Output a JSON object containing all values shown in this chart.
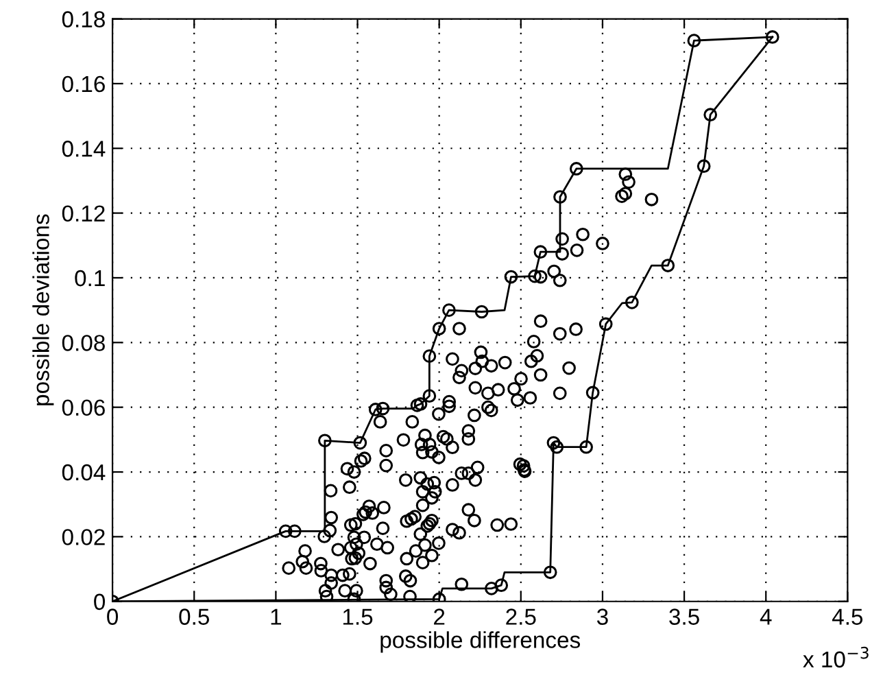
{
  "chart_data": {
    "type": "scatter",
    "xlabel": "possible differences",
    "ylabel": "possible deviations",
    "annotations": [
      "x 10$^{−3}$"
    ],
    "xlim": [
      0,
      4.5
    ],
    "xticks": [
      0,
      0.5,
      1,
      1.5,
      2,
      2.5,
      3,
      3.5,
      4,
      4.5
    ],
    "ylim": [
      0,
      0.18
    ],
    "yticks": [
      0,
      0.02,
      0.04,
      0.06,
      0.08,
      0.1,
      0.12,
      0.14,
      0.16,
      0.18
    ],
    "grid": true,
    "marker": "circle",
    "series": [
      {
        "color": "#000000",
        "x": [
          0,
          1.06,
          1.115,
          1.3,
          1.516,
          1.61,
          1.655,
          1.865,
          1.886,
          1.94,
          1.94,
          2.0,
          2.06,
          2.26,
          2.44,
          2.585,
          2.62,
          2.74,
          2.84,
          3.56,
          4.04,
          2.0,
          2.32,
          2.38,
          2.68,
          2.7,
          2.72,
          2.9,
          2.94,
          3.02,
          3.18,
          3.4,
          3.62,
          3.66,
          1.079,
          1.179,
          1.163,
          1.185,
          1.275,
          1.277,
          1.297,
          1.331,
          1.339,
          1.336,
          1.303,
          1.311,
          1.339,
          1.339,
          1.381,
          1.409,
          1.423,
          1.451,
          1.465,
          1.459,
          1.459,
          1.487,
          1.479,
          1.493,
          1.507,
          1.487,
          1.479,
          1.493,
          1.541,
          1.535,
          1.549,
          1.571,
          1.591,
          1.577,
          1.619,
          1.655,
          1.661,
          1.683,
          1.675,
          1.675,
          1.703,
          1.451,
          1.437,
          1.479,
          1.521,
          1.543,
          1.675,
          1.675,
          1.639,
          1.781,
          1.795,
          1.801,
          1.829,
          1.851,
          1.801,
          1.795,
          1.823,
          1.821,
          1.857,
          1.885,
          1.899,
          1.885,
          1.927,
          1.899,
          1.969,
          1.955,
          1.975,
          1.899,
          1.941,
          1.955,
          1.927,
          1.913,
          1.955,
          1.997,
          1.913,
          1.891,
          1.941,
          1.899,
          1.955,
          1.997,
          1.835,
          2.025,
          2.047,
          2.081,
          1.997,
          2.061,
          2.061,
          2.081,
          2.123,
          2.137,
          2.123,
          2.221,
          2.081,
          2.081,
          2.123,
          2.137,
          2.179,
          2.215,
          2.137,
          2.179,
          2.221,
          2.179,
          2.179,
          2.215,
          2.221,
          2.255,
          2.263,
          2.319,
          2.403,
          2.299,
          2.361,
          2.459,
          2.479,
          2.501,
          2.557,
          2.299,
          2.319,
          2.235,
          2.495,
          2.521,
          2.355,
          2.439,
          2.579,
          2.599,
          2.563,
          2.621,
          2.621,
          2.739,
          2.837,
          2.795,
          2.739,
          2.703,
          2.739,
          2.621,
          2.753,
          2.753,
          2.843,
          2.879,
          3.0,
          3.14,
          3.16,
          3.14,
          3.118,
          3.3,
          2.516,
          2.524
        ],
        "values": [
          0,
          0.0217,
          0.0217,
          0.0497,
          0.049,
          0.0593,
          0.0596,
          0.0606,
          0.061,
          0.0635,
          0.0758,
          0.0843,
          0.09,
          0.0895,
          0.1003,
          0.1005,
          0.108,
          0.125,
          0.1337,
          0.1733,
          0.1744,
          0.0007,
          0.004,
          0.005,
          0.009,
          0.049,
          0.0477,
          0.0477,
          0.0645,
          0.0857,
          0.0924,
          0.1038,
          0.1345,
          0.1504,
          0.0103,
          0.0156,
          0.0123,
          0.0103,
          0.0117,
          0.0095,
          0.0201,
          0.0219,
          0.0259,
          0.0342,
          0.0033,
          0.0015,
          0.0057,
          0.0081,
          0.016,
          0.0081,
          0.0033,
          0.0085,
          0.0132,
          0.0166,
          0.0236,
          0.024,
          0.0198,
          0.0177,
          0.0149,
          0.0134,
          0.0007,
          0.0033,
          0.0198,
          0.0269,
          0.0276,
          0.0294,
          0.0273,
          0.0117,
          0.0177,
          0.0226,
          0.029,
          0.0166,
          0.0064,
          0.0043,
          0.0022,
          0.0353,
          0.041,
          0.04,
          0.0434,
          0.0442,
          0.0466,
          0.042,
          0.0555,
          0.0499,
          0.0375,
          0.0248,
          0.0255,
          0.0262,
          0.0132,
          0.0078,
          0.0064,
          0.0015,
          0.0156,
          0.0208,
          0.012,
          0.0382,
          0.0363,
          0.0339,
          0.0367,
          0.032,
          0.0339,
          0.0297,
          0.024,
          0.025,
          0.0233,
          0.0174,
          0.0142,
          0.018,
          0.0513,
          0.0485,
          0.0485,
          0.046,
          0.0462,
          0.0445,
          0.0555,
          0.0509,
          0.0502,
          0.0476,
          0.0579,
          0.0617,
          0.0603,
          0.0749,
          0.0843,
          0.0713,
          0.0692,
          0.072,
          0.036,
          0.0222,
          0.0212,
          0.0053,
          0.0283,
          0.025,
          0.0396,
          0.0396,
          0.0375,
          0.0527,
          0.0502,
          0.0575,
          0.066,
          0.077,
          0.0742,
          0.0728,
          0.0738,
          0.0643,
          0.0654,
          0.0657,
          0.0622,
          0.0688,
          0.0629,
          0.06,
          0.059,
          0.0414,
          0.0424,
          0.0406,
          0.0236,
          0.0239,
          0.0803,
          0.0759,
          0.0742,
          0.07,
          0.0866,
          0.0827,
          0.0841,
          0.0721,
          0.0643,
          0.102,
          0.0992,
          0.1003,
          0.112,
          0.1074,
          0.1085,
          0.1134,
          0.1106,
          0.132,
          0.1296,
          0.126,
          0.1252,
          0.1242,
          0.0419,
          0.0402
        ]
      },
      {
        "type": "line",
        "color": "#000000",
        "marker": "none",
        "line_style": "solid",
        "x": [
          0,
          1.06,
          1.115,
          1.3,
          1.3,
          1.516,
          1.61,
          1.655,
          1.84,
          1.865,
          1.886,
          1.94,
          1.94,
          2.0,
          2.06,
          2.26,
          2.4,
          2.44,
          2.585,
          2.62,
          2.74,
          2.74,
          2.84,
          3.4,
          3.56,
          4.04
        ],
        "values": [
          0,
          0.0217,
          0.0217,
          0.0217,
          0.0497,
          0.049,
          0.0593,
          0.0596,
          0.0596,
          0.0606,
          0.061,
          0.0635,
          0.0758,
          0.0843,
          0.09,
          0.0895,
          0.09,
          0.1003,
          0.1005,
          0.108,
          0.108,
          0.125,
          0.1337,
          0.1337,
          0.1733,
          0.1744
        ]
      },
      {
        "type": "line",
        "color": "#000000",
        "marker": "none",
        "line_style": "solid",
        "x": [
          0,
          2.0,
          2.02,
          2.32,
          2.38,
          2.4,
          2.68,
          2.7,
          2.72,
          2.9,
          2.94,
          3.02,
          3.12,
          3.18,
          3.3,
          3.4,
          3.62,
          3.66,
          4.04
        ],
        "values": [
          0,
          0.0007,
          0.004,
          0.004,
          0.005,
          0.009,
          0.009,
          0.049,
          0.0477,
          0.0477,
          0.0645,
          0.0857,
          0.0922,
          0.0924,
          0.1038,
          0.1038,
          0.1345,
          0.1504,
          0.1744
        ]
      }
    ]
  }
}
